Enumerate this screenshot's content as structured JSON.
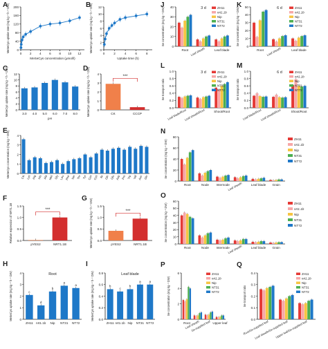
{
  "colors": {
    "ZH11": "#e53935",
    "nrt1.1b": "#f7a7a7",
    "Nip": "#f6c542",
    "NT31": "#4caf50",
    "NT72": "#1e78c8",
    "blue": "#1e78c8",
    "orange": "#f0804a",
    "red": "#d32f2f"
  },
  "panels": {
    "A": {
      "letter": "A",
      "ylabel": "MeSeCys uptake rate (mg kg⁻¹ h⁻¹ DW)",
      "xlabel": "MeSeCys concentration (μmol/l)",
      "xticks": [
        "0",
        "2",
        "4",
        "6",
        "8",
        "10",
        "12"
      ],
      "yticks": [
        "0",
        "40",
        "80",
        "120",
        "160",
        "200"
      ],
      "chart_data": {
        "type": "scatter",
        "x": [
          0.05,
          0.1,
          0.25,
          0.5,
          1,
          2,
          4,
          6,
          8,
          10,
          12
        ],
        "y": [
          10,
          25,
          45,
          60,
          72,
          85,
          110,
          120,
          125,
          135,
          150
        ],
        "xlim": [
          0,
          13
        ],
        "ylim": [
          0,
          200
        ]
      }
    },
    "B": {
      "letter": "B",
      "ylabel": "MeSeCys uptake rate (mg kg⁻¹ h⁻¹ DW)",
      "xlabel": "Uptake time (h)",
      "xticks": [
        "0",
        "2",
        "4",
        "6",
        "8"
      ],
      "yticks": [
        "0",
        "2",
        "4",
        "6",
        "8",
        "10",
        "12"
      ],
      "chart_data": {
        "type": "scatter",
        "x": [
          0.1,
          0.25,
          0.5,
          1,
          1.5,
          2,
          3,
          4,
          6,
          8
        ],
        "y": [
          1.5,
          3,
          4.5,
          6,
          6.8,
          7.5,
          8.5,
          9,
          9.5,
          10
        ],
        "xlim": [
          0,
          9
        ],
        "ylim": [
          0,
          12
        ]
      }
    },
    "C": {
      "letter": "C",
      "ylabel": "MeSeCys uptake rate (mg kg⁻¹ h⁻¹ DW)",
      "xlabel": "pH",
      "yticks": [
        "0",
        "2",
        "4",
        "6",
        "8",
        "10",
        "12"
      ],
      "chart_data": {
        "type": "bar",
        "categories": [
          "3.0",
          "4.0",
          "5.0",
          "6.0",
          "7.0",
          "8.0"
        ],
        "values": [
          7.2,
          7.5,
          9.0,
          10.0,
          9.2,
          7.8
        ],
        "ylim": [
          0,
          12
        ]
      }
    },
    "D": {
      "letter": "D",
      "ylabel": "MeSeCys uptake rate (mg kg⁻¹ h⁻¹ DW)",
      "yticks": [
        "0",
        "1",
        "2",
        "3",
        "4"
      ],
      "sig": "***",
      "chart_data": {
        "type": "bar",
        "categories": [
          "CK",
          "CCCP"
        ],
        "values": [
          2.9,
          0.3
        ],
        "ylim": [
          0,
          4
        ]
      }
    },
    "E": {
      "letter": "E",
      "ylabel": "MeSeCys concentration (mg kg⁻¹ DW)",
      "yticks": [
        "0",
        "1",
        "2",
        "3",
        "4"
      ],
      "chart_data": {
        "type": "bar",
        "categories": [
          "CK",
          "Lys",
          "Arg",
          "His",
          "Ala",
          "Met",
          "Gly",
          "Leu",
          "Phe",
          "Ser",
          "Thr",
          "Tyr",
          "Cys",
          "Cys",
          "Ile",
          "Gln",
          "Glu",
          "Asp",
          "Pro",
          "Trp",
          "Val",
          "Asn",
          "Gln"
        ],
        "values": [
          3.6,
          1.4,
          1.7,
          1.6,
          1.1,
          1.2,
          1.4,
          1.0,
          1.3,
          1.5,
          1.6,
          2.0,
          1.7,
          2.1,
          2.5,
          2.4,
          2.6,
          2.7,
          2.5,
          2.8,
          2.6,
          2.9,
          2.8
        ],
        "ylim": [
          0,
          4
        ]
      }
    },
    "F": {
      "letter": "F",
      "ylabel": "Relative expression of NRT1.1B",
      "yticks": [
        "0.0",
        "0.5",
        "1.0",
        "1.5"
      ],
      "sig": "***",
      "chart_data": {
        "type": "bar",
        "categories": [
          "pYES2",
          "NRT1.1B"
        ],
        "values": [
          0.02,
          1.0
        ],
        "ylim": [
          0,
          1.5
        ]
      }
    },
    "G": {
      "letter": "G",
      "ylabel": "MeSeCys uptake rate (mg kg⁻¹ h⁻¹ DW)",
      "yticks": [
        "0.0",
        "0.5",
        "1.0",
        "1.5"
      ],
      "sig": "***",
      "chart_data": {
        "type": "bar",
        "categories": [
          "pYES2",
          "NRT1.1B"
        ],
        "values": [
          0.42,
          0.95
        ],
        "ylim": [
          0,
          1.5
        ]
      }
    },
    "H": {
      "letter": "H",
      "title": "Root",
      "ylabel": "MeSeCys uptake rate (mg kg⁻¹ h⁻¹ DW)",
      "yticks": [
        "0",
        "1",
        "2",
        "3",
        "4"
      ],
      "chart_data": {
        "type": "bar",
        "categories": [
          "ZH11",
          "nrt1.1b",
          "Nip",
          "NT31",
          "NT72"
        ],
        "values": [
          2.1,
          1.2,
          2.4,
          2.9,
          2.7
        ],
        "letters": [
          "c",
          "d",
          "b",
          "a",
          "a"
        ],
        "ylim": [
          0,
          4
        ]
      }
    },
    "I": {
      "letter": "I",
      "title": "Leaf blade",
      "ylabel": "MeSeCys uptake rate (mg kg⁻¹ h⁻¹ DW)",
      "yticks": [
        "0.0",
        "0.2",
        "0.4",
        "0.6",
        "0.8"
      ],
      "chart_data": {
        "type": "bar",
        "categories": [
          "ZH11",
          "nrt1.1b",
          "Nip",
          "NT31",
          "NT72"
        ],
        "values": [
          0.52,
          0.48,
          0.52,
          0.6,
          0.6
        ],
        "letters": [
          "b",
          "c",
          "b",
          "a",
          "a"
        ],
        "ylim": [
          0,
          0.8
        ]
      }
    },
    "J": {
      "letter": "J",
      "title": "3 d",
      "ylabel": "Se concentration (mg kg⁻¹ DW)",
      "yticks": [
        "0",
        "10",
        "20",
        "30",
        "40"
      ],
      "chart_data": {
        "type": "bar",
        "ylim": [
          0,
          40
        ],
        "categories": [
          "Root",
          "Leaf sheath",
          "Leaf blade"
        ],
        "series": [
          {
            "name": "ZH11",
            "values": [
              24,
              7,
              7
            ]
          },
          {
            "name": "nrt1.1b",
            "values": [
              19,
              5,
              5
            ]
          },
          {
            "name": "Nip",
            "values": [
              26,
              8,
              8
            ]
          },
          {
            "name": "NT31",
            "values": [
              30,
              10,
              10
            ]
          },
          {
            "name": "NT72",
            "values": [
              32,
              11,
              11
            ]
          }
        ]
      }
    },
    "K": {
      "letter": "K",
      "title": "6 d",
      "ylabel": "Se concentration (mg kg⁻¹ DW)",
      "yticks": [
        "0",
        "10",
        "20",
        "30",
        "40",
        "50"
      ],
      "chart_data": {
        "type": "bar",
        "ylim": [
          0,
          50
        ],
        "categories": [
          "Root",
          "Leaf sheath",
          "Leaf blade"
        ],
        "series": [
          {
            "name": "ZH11",
            "values": [
              30,
              9,
              10
            ]
          },
          {
            "name": "nrt1.1b",
            "values": [
              12,
              6,
              7
            ]
          },
          {
            "name": "Nip",
            "values": [
              33,
              10,
              11
            ]
          },
          {
            "name": "NT31",
            "values": [
              44,
              13,
              13
            ]
          },
          {
            "name": "NT72",
            "values": [
              46,
              14,
              14
            ]
          }
        ]
      }
    },
    "L": {
      "letter": "L",
      "title": "3 d",
      "ylabel": "Se transport ratio",
      "yticks": [
        "0.0",
        "0.2",
        "0.4",
        "0.6",
        "0.8",
        "1.0"
      ],
      "chart_data": {
        "type": "bar",
        "ylim": [
          0,
          1.0
        ],
        "categories": [
          "Leaf blade/Root",
          "Leaf sheath/Root",
          "Shoot/Root"
        ],
        "series": [
          {
            "name": "ZH11",
            "values": [
              0.3,
              0.28,
              0.55
            ]
          },
          {
            "name": "nrt1.1b",
            "values": [
              0.27,
              0.24,
              0.5
            ]
          },
          {
            "name": "Nip",
            "values": [
              0.31,
              0.29,
              0.6
            ]
          },
          {
            "name": "NT31",
            "values": [
              0.33,
              0.31,
              0.65
            ]
          },
          {
            "name": "NT72",
            "values": [
              0.34,
              0.33,
              0.7
            ]
          }
        ]
      }
    },
    "M": {
      "letter": "M",
      "title": "6 d",
      "ylabel": "Se transport ratio",
      "yticks": [
        "0.0",
        "0.2",
        "0.4",
        "0.6",
        "0.8",
        "1.0"
      ],
      "chart_data": {
        "type": "bar",
        "ylim": [
          0,
          1.0
        ],
        "categories": [
          "Leaf blade/Root",
          "Leaf sheath/Root",
          "Shoot/Root"
        ],
        "series": [
          {
            "name": "ZH11",
            "values": [
              0.33,
              0.3,
              0.62
            ]
          },
          {
            "name": "nrt1.1b",
            "values": [
              0.4,
              0.36,
              0.78
            ]
          },
          {
            "name": "Nip",
            "values": [
              0.32,
              0.29,
              0.6
            ]
          },
          {
            "name": "NT31",
            "values": [
              0.3,
              0.28,
              0.58
            ]
          },
          {
            "name": "NT72",
            "values": [
              0.31,
              0.29,
              0.6
            ]
          }
        ]
      }
    },
    "N": {
      "letter": "N",
      "ylabel": "Se concentration (mg kg⁻¹ DW)",
      "yticks": [
        "0",
        "20",
        "40",
        "60",
        "80"
      ],
      "chart_data": {
        "type": "bar",
        "ylim": [
          0,
          80
        ],
        "categories": [
          "Root",
          "Node",
          "Internode",
          "Leaf sheath",
          "Leaf blade",
          "Grain"
        ],
        "series": [
          {
            "name": "ZH11",
            "values": [
              40,
              14,
              8,
              7,
              4,
              2
            ]
          },
          {
            "name": "nrt1.1b",
            "values": [
              30,
              10,
              6,
              5,
              3,
              1.5
            ]
          },
          {
            "name": "Nip",
            "values": [
              42,
              15,
              8,
              7,
              4,
              2
            ]
          },
          {
            "name": "NT31",
            "values": [
              52,
              18,
              10,
              9,
              5,
              3
            ]
          },
          {
            "name": "NT72",
            "values": [
              56,
              20,
              11,
              10,
              6,
              3
            ]
          }
        ]
      }
    },
    "O": {
      "letter": "O",
      "ylabel": "Se concentration (mg kg⁻¹ DW)",
      "yticks": [
        "0",
        "10",
        "20",
        "30",
        "40",
        "50",
        "60"
      ],
      "chart_data": {
        "type": "bar",
        "ylim": [
          0,
          60
        ],
        "categories": [
          "Root",
          "Node",
          "Internode",
          "Leaf sheath",
          "Leaf blade",
          "Grain"
        ],
        "series": [
          {
            "name": "ZH11",
            "values": [
              40,
              12,
              6,
              5,
              3,
              2
            ]
          },
          {
            "name": "nrt1.1b",
            "values": [
              44,
              9,
              5,
              4,
              2.5,
              1.5
            ]
          },
          {
            "name": "Nip",
            "values": [
              42,
              12,
              6,
              5,
              3,
              2
            ]
          },
          {
            "name": "NT31",
            "values": [
              38,
              15,
              8,
              7,
              4,
              2.5
            ]
          },
          {
            "name": "NT72",
            "values": [
              36,
              16,
              9,
              7,
              4,
              2.6
            ]
          }
        ]
      }
    },
    "P": {
      "letter": "P",
      "ylabel": "Se concentration (mg kg⁻¹ DW)",
      "yticks": [
        "0",
        "2",
        "4",
        "6"
      ],
      "chart_data": {
        "type": "bar",
        "ylim": [
          0,
          6
        ],
        "categories": [
          "Root",
          "Leaf sheath",
          "Se-supplied leaf",
          "Upper leaf"
        ],
        "series": [
          {
            "name": "ZH11",
            "values": [
              2.5,
              0.5,
              0.6,
              0.3
            ]
          },
          {
            "name": "nrt1.1b",
            "values": [
              2.3,
              0.4,
              0.5,
              0.25
            ]
          },
          {
            "name": "Nip",
            "values": [
              2.6,
              0.5,
              0.6,
              0.3
            ]
          },
          {
            "name": "NT31",
            "values": [
              4.2,
              0.8,
              0.9,
              0.5
            ]
          },
          {
            "name": "NT72",
            "values": [
              4.0,
              0.9,
              1.0,
              0.5
            ]
          }
        ]
      }
    },
    "Q": {
      "letter": "Q",
      "ylabel": "Se transport ratio",
      "yticks": [
        "0.0",
        "0.1",
        "0.2",
        "0.3",
        "0.4"
      ],
      "chart_data": {
        "type": "bar",
        "ylim": [
          0,
          0.4
        ],
        "categories": [
          "Root/Se-supplied leaf",
          "Leaf sheath/Se-supplied leaf",
          "Upper leaf/Se-supplied leaf"
        ],
        "series": [
          {
            "name": "ZH11",
            "values": [
              0.26,
              0.17,
              0.14
            ]
          },
          {
            "name": "nrt1.1b",
            "values": [
              0.25,
              0.16,
              0.13
            ]
          },
          {
            "name": "Nip",
            "values": [
              0.27,
              0.18,
              0.14
            ]
          },
          {
            "name": "NT31",
            "values": [
              0.28,
              0.2,
              0.16
            ]
          },
          {
            "name": "NT72",
            "values": [
              0.29,
              0.21,
              0.17
            ]
          }
        ]
      }
    }
  },
  "legend": [
    "ZH11",
    "nrt1.1b",
    "Nip",
    "NT31",
    "NT72"
  ]
}
